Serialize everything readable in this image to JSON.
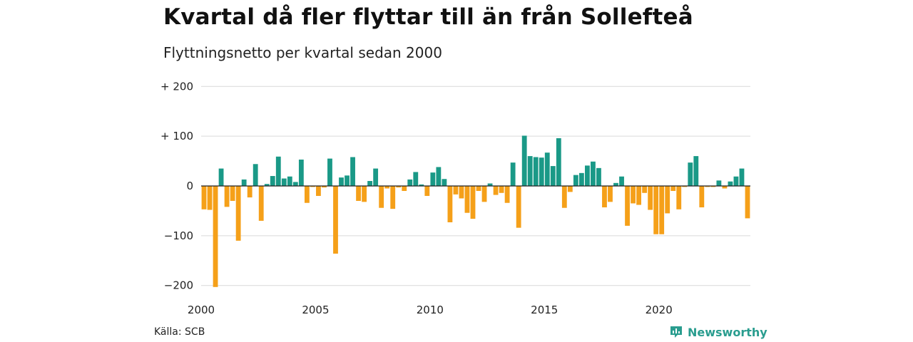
{
  "title": "Kvartal då fler flyttar till än från Sollefteå",
  "subtitle": "Flyttningsnetto per kvartal sedan 2000",
  "source": "Källa: SCB",
  "brand": {
    "name": "Newsworthy",
    "icon": "newsworthy-logo-icon"
  },
  "colors": {
    "positive": "#1a9987",
    "negative": "#f5a019",
    "grid": "#d9d9d9",
    "zero": "#222222"
  },
  "chart_data": {
    "type": "bar",
    "title": "Kvartal då fler flyttar till än från Sollefteå",
    "subtitle": "Flyttningsnetto per kvartal sedan 2000",
    "xlabel": "",
    "ylabel": "",
    "ylim": [
      -210,
      200
    ],
    "yticks": [
      200,
      100,
      0,
      -100,
      -200
    ],
    "ytick_labels": [
      "+ 200",
      "+ 100",
      "0",
      "−100",
      "−200"
    ],
    "xticks": [
      2000,
      2005,
      2010,
      2015,
      2020
    ],
    "xtick_labels": [
      "2000",
      "2005",
      "2010",
      "2015",
      "2020"
    ],
    "grid": true,
    "start": "2000 Q1",
    "values": [
      -47,
      -48,
      -203,
      35,
      -42,
      -30,
      -110,
      13,
      -23,
      44,
      -70,
      4,
      20,
      59,
      15,
      19,
      8,
      53,
      -34,
      -2,
      -20,
      -3,
      55,
      -136,
      17,
      21,
      58,
      -30,
      -32,
      10,
      35,
      -44,
      -5,
      -46,
      -3,
      -10,
      13,
      28,
      3,
      -20,
      27,
      38,
      14,
      -73,
      -17,
      -25,
      -54,
      -66,
      -10,
      -32,
      5,
      -18,
      -14,
      -34,
      47,
      -84,
      101,
      60,
      58,
      57,
      67,
      40,
      96,
      -44,
      -12,
      22,
      26,
      41,
      49,
      36,
      -43,
      -32,
      6,
      19,
      -80,
      -35,
      -38,
      -14,
      -48,
      -97,
      -97,
      -55,
      -10,
      -47,
      -2,
      47,
      60,
      -43,
      -2,
      -2,
      11,
      -5,
      9,
      19,
      35,
      -65
    ]
  }
}
